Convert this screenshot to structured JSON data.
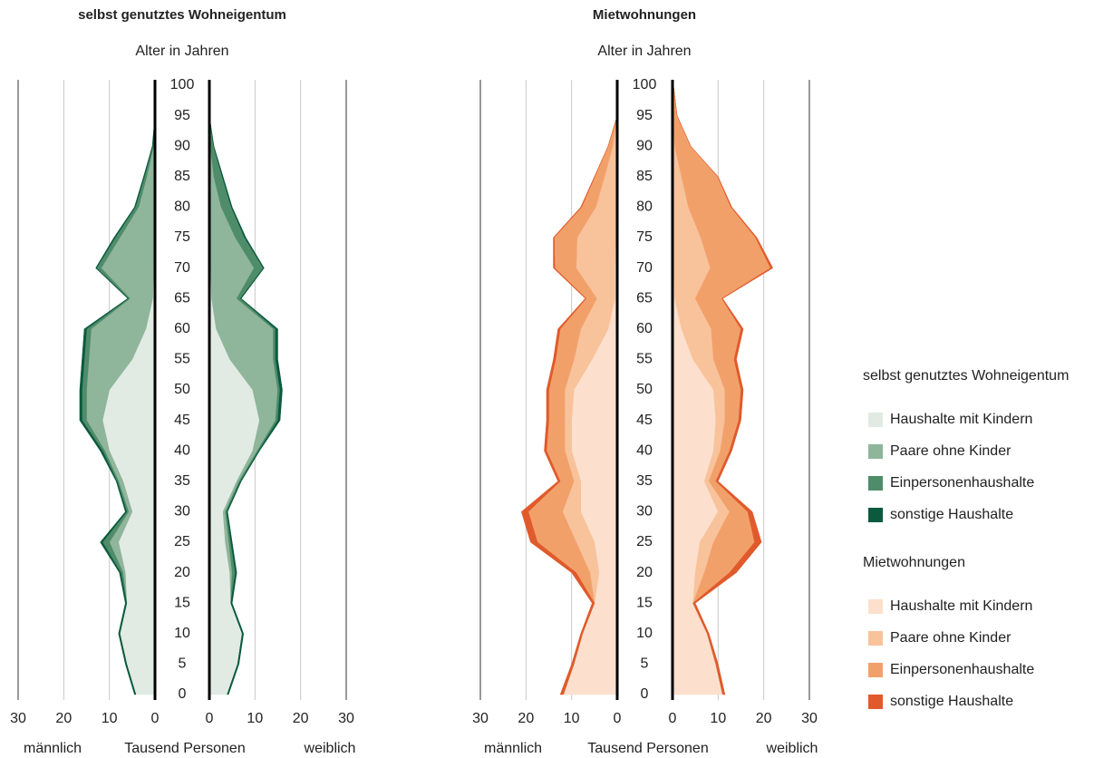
{
  "chart_data": [
    {
      "type": "pyramid",
      "title": "selbst genutztes Wohneigentum",
      "y_label": "Alter in Jahren",
      "x_label": "Tausend Personen",
      "left_label": "männlich",
      "right_label": "weiblich",
      "agelim": [
        0,
        100
      ],
      "ageticks": [
        0,
        5,
        10,
        15,
        20,
        25,
        30,
        35,
        40,
        45,
        50,
        55,
        60,
        65,
        70,
        75,
        80,
        85,
        90,
        95,
        100
      ],
      "xlim": [
        0,
        30
      ],
      "xticks": [
        0,
        10,
        20,
        30
      ],
      "ages": [
        0,
        5,
        10,
        15,
        20,
        25,
        30,
        35,
        40,
        45,
        50,
        55,
        60,
        65,
        70,
        75,
        80,
        85,
        90,
        95,
        100
      ],
      "series": [
        {
          "name": "Haushalte mit Kindern",
          "color": "#e1ebe3",
          "male": [
            4.2,
            6.2,
            7.7,
            6.2,
            6.5,
            8,
            5,
            7,
            10,
            11.5,
            10,
            5,
            2,
            0.5,
            0.3,
            0.2,
            0.1,
            0,
            0,
            0,
            0
          ],
          "female": [
            3.9,
            6.2,
            7.2,
            4.7,
            4.5,
            3.5,
            3,
            6,
            9.5,
            11,
            9.5,
            4.5,
            1.5,
            0.5,
            0.3,
            0.2,
            0.1,
            0,
            0,
            0,
            0
          ]
        },
        {
          "name": "Paare ohne Kinder",
          "color": "#8fb59b",
          "male": [
            0,
            0,
            0,
            0,
            0.5,
            2,
            0.8,
            1,
            1,
            3.5,
            5,
            9.5,
            12,
            5,
            11.5,
            7.5,
            3.5,
            1.8,
            0.3,
            0,
            0
          ],
          "female": [
            0,
            0,
            0,
            0,
            0.5,
            0.8,
            0.5,
            0.5,
            1,
            3.5,
            5.5,
            9.5,
            12.5,
            5.5,
            9.5,
            5.5,
            2.5,
            1,
            0.2,
            0,
            0
          ]
        },
        {
          "name": "Einpersonenhaushalte",
          "color": "#4f8c6a",
          "male": [
            0,
            0,
            0,
            0,
            0.5,
            1.5,
            0.4,
            0.3,
            0.5,
            1,
            1,
            1,
            1,
            0.3,
            1,
            1,
            0.7,
            0.5,
            0.2,
            0,
            0
          ],
          "female": [
            0,
            0,
            0,
            0,
            0.7,
            0.4,
            0.3,
            0.3,
            0.3,
            0.5,
            0.5,
            0.5,
            0.5,
            0.8,
            2,
            2,
            2.2,
            1.8,
            0.7,
            0,
            0
          ]
        },
        {
          "name": "sonstige Haushalte",
          "color": "#0b5a3e",
          "male": [
            0.3,
            0.3,
            0.3,
            0.3,
            0.3,
            0.5,
            0.3,
            0.2,
            0.5,
            0.5,
            0.5,
            0.5,
            0.5,
            0.2,
            0.2,
            0.3,
            0.2,
            0.2,
            0.1,
            0,
            0
          ],
          "female": [
            0.3,
            0.3,
            0.3,
            0.3,
            0.3,
            0.3,
            0.2,
            0.2,
            0.2,
            0.5,
            0.5,
            0.5,
            0.5,
            0.2,
            0.2,
            0.3,
            0.2,
            0.2,
            0.1,
            0,
            0
          ]
        }
      ]
    },
    {
      "type": "pyramid",
      "title": "Mietwohnungen",
      "y_label": "Alter in Jahren",
      "x_label": "Tausend Personen",
      "left_label": "männlich",
      "right_label": "weiblich",
      "agelim": [
        0,
        100
      ],
      "ageticks": [
        0,
        5,
        10,
        15,
        20,
        25,
        30,
        35,
        40,
        45,
        50,
        55,
        60,
        65,
        70,
        75,
        80,
        85,
        90,
        95,
        100
      ],
      "xlim": [
        0,
        30
      ],
      "xticks": [
        0,
        10,
        20,
        30
      ],
      "ages": [
        0,
        5,
        10,
        15,
        20,
        25,
        30,
        35,
        40,
        45,
        50,
        55,
        60,
        65,
        70,
        75,
        80,
        85,
        90,
        95,
        100
      ],
      "series": [
        {
          "name": "Haushalte mit Kindern",
          "color": "#fce0cd",
          "male": [
            11.8,
            9.5,
            7.6,
            5,
            4,
            5,
            8,
            8,
            10,
            10,
            9.5,
            5.5,
            2,
            0.5,
            0.5,
            0.3,
            0.2,
            0,
            0,
            0,
            0
          ],
          "female": [
            11,
            9.5,
            7.6,
            4.5,
            5,
            6,
            10,
            7,
            9,
            9.5,
            9,
            4.5,
            2,
            0.5,
            0.3,
            0.2,
            0,
            0,
            0,
            0,
            0
          ]
        },
        {
          "name": "Paare ohne Kinder",
          "color": "#f8c29b",
          "male": [
            0,
            0,
            0,
            0,
            2,
            4,
            4,
            1.5,
            1.5,
            1.5,
            2,
            4,
            6,
            4,
            8.5,
            8.5,
            4.5,
            2.8,
            1,
            0,
            0
          ],
          "female": [
            0,
            0,
            0,
            0,
            2,
            3,
            2.5,
            1,
            1.5,
            2,
            2.5,
            4.5,
            6.5,
            4.5,
            8,
            6,
            3.5,
            2,
            0.5,
            0.1,
            0
          ]
        },
        {
          "name": "Einpersonenhaushalte",
          "color": "#f2a06a",
          "male": [
            0,
            0,
            0,
            0,
            3,
            8.5,
            7.5,
            3,
            4,
            3.5,
            3.5,
            4,
            4.5,
            2.3,
            4.7,
            5,
            3.1,
            2.1,
            1,
            0,
            0
          ],
          "female": [
            0,
            0,
            0,
            0,
            5.5,
            9,
            4,
            1.5,
            2,
            3,
            3.5,
            4.5,
            6.5,
            5.8,
            13.2,
            12,
            9.3,
            7.9,
            3.5,
            0.9,
            0.2
          ]
        },
        {
          "name": "sonstige Haushalte",
          "color": "#e05a2b",
          "male": [
            0.7,
            0.5,
            0.4,
            0.5,
            1,
            1.5,
            1.5,
            0.5,
            0.5,
            0.5,
            0.5,
            0.5,
            0.5,
            0.2,
            0.3,
            0.2,
            0.2,
            0.1,
            0,
            0,
            0
          ],
          "female": [
            0.5,
            0.5,
            0.4,
            0.5,
            1.5,
            1.5,
            1,
            0.5,
            0.5,
            0.5,
            0.5,
            0.5,
            0.5,
            0.2,
            0.5,
            0.3,
            0.2,
            0.1,
            0,
            0,
            0
          ]
        }
      ]
    }
  ]
}
